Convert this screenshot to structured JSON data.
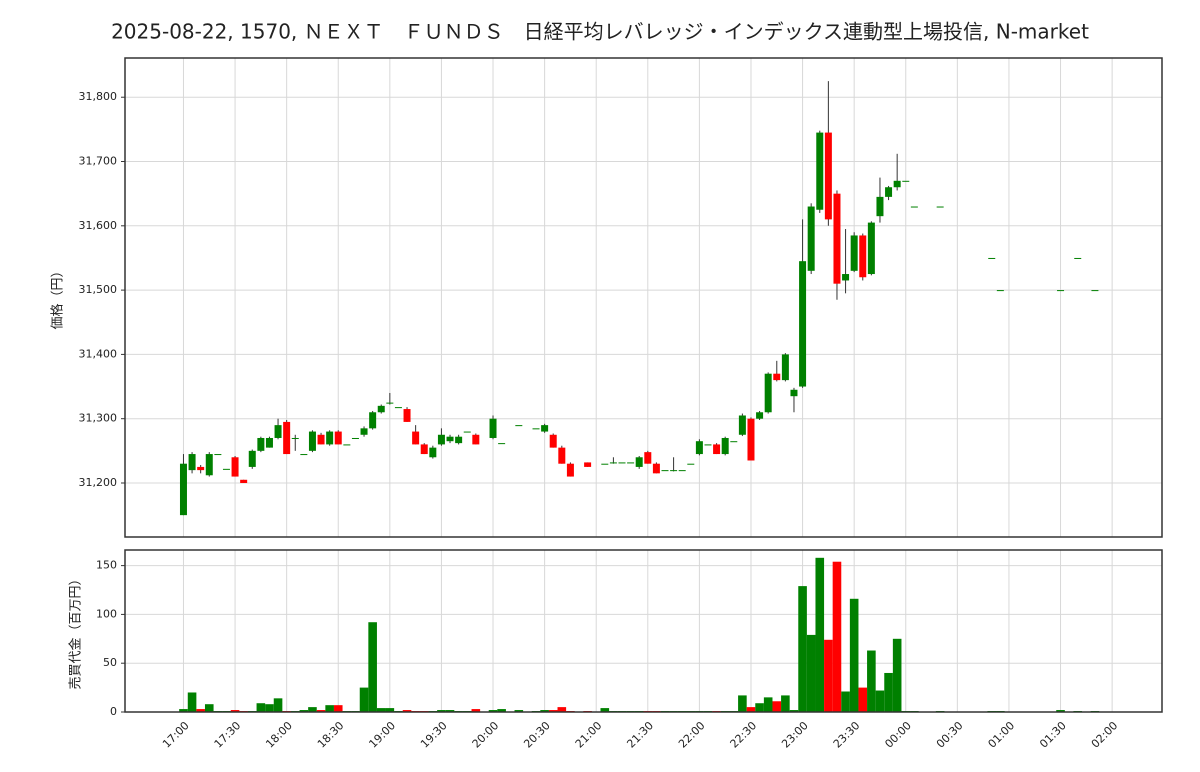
{
  "chart_data": {
    "type": "candlestick",
    "title": "2025-08-22, 1570, ＮＥＸＴ　ＦＵＮＤＳ　日経平均レバレッジ・インデックス連動型上場投信, N-market",
    "ylabel": "価格（円）",
    "y2label": "売買代金（百万円）",
    "up_color": "#008000",
    "down_color": "#ff0000",
    "grid": true,
    "x": [
      "17:00",
      "17:05",
      "17:10",
      "17:15",
      "17:20",
      "17:25",
      "17:30",
      "17:35",
      "17:40",
      "17:45",
      "17:50",
      "17:55",
      "18:00",
      "18:05",
      "18:10",
      "18:15",
      "18:20",
      "18:25",
      "18:30",
      "18:35",
      "18:40",
      "18:45",
      "18:50",
      "18:55",
      "19:00",
      "19:05",
      "19:10",
      "19:15",
      "19:20",
      "19:25",
      "19:30",
      "19:35",
      "19:40",
      "19:45",
      "19:50",
      "20:00",
      "20:05",
      "20:15",
      "20:25",
      "20:30",
      "20:35",
      "20:40",
      "20:45",
      "20:55",
      "21:05",
      "21:10",
      "21:15",
      "21:20",
      "21:25",
      "21:30",
      "21:35",
      "21:40",
      "21:45",
      "21:50",
      "21:55",
      "22:00",
      "22:05",
      "22:10",
      "22:15",
      "22:20",
      "22:25",
      "22:30",
      "22:35",
      "22:40",
      "22:45",
      "22:50",
      "22:55",
      "23:00",
      "23:05",
      "23:10",
      "23:15",
      "23:20",
      "23:25",
      "23:30",
      "23:35",
      "23:40",
      "23:45",
      "23:50",
      "23:55",
      "00:00",
      "00:05",
      "00:20",
      "00:50",
      "00:55",
      "01:30",
      "01:40",
      "01:50"
    ],
    "open": [
      31150,
      31220,
      31225,
      31212,
      31245,
      31222,
      31240,
      31205,
      31225,
      31250,
      31255,
      31270,
      31295,
      31270,
      31245,
      31250,
      31275,
      31260,
      31280,
      31260,
      31270,
      31275,
      31285,
      31310,
      31325,
      31318,
      31315,
      31280,
      31260,
      31240,
      31260,
      31265,
      31262,
      31280,
      31275,
      31270,
      31262,
      31290,
      31285,
      31280,
      31275,
      31255,
      31230,
      31232,
      31230,
      31232,
      31232,
      31232,
      31225,
      31248,
      31230,
      31220,
      31220,
      31220,
      31230,
      31245,
      31260,
      31260,
      31245,
      31265,
      31275,
      31300,
      31300,
      31310,
      31370,
      31360,
      31335,
      31350,
      31530,
      31625,
      31745,
      31650,
      31515,
      31530,
      31585,
      31525,
      31615,
      31645,
      31660,
      31670,
      31630,
      31630,
      31550,
      31500,
      31500,
      31550,
      31500
    ],
    "high": [
      31245,
      31248,
      31228,
      31248,
      31245,
      31222,
      31242,
      31205,
      31252,
      31272,
      31272,
      31300,
      31298,
      31275,
      31245,
      31282,
      31278,
      31282,
      31282,
      31260,
      31270,
      31288,
      31312,
      31322,
      31340,
      31318,
      31318,
      31290,
      31262,
      31258,
      31285,
      31275,
      31275,
      31280,
      31277,
      31305,
      31262,
      31290,
      31285,
      31292,
      31277,
      31258,
      31232,
      31232,
      31230,
      31240,
      31232,
      31232,
      31242,
      31250,
      31232,
      31220,
      31240,
      31220,
      31230,
      31268,
      31260,
      31262,
      31272,
      31265,
      31308,
      31302,
      31312,
      31372,
      31390,
      31402,
      31348,
      31610,
      31635,
      31748,
      31825,
      31655,
      31595,
      31590,
      31588,
      31607,
      31675,
      31662,
      31712,
      31670,
      31630,
      31630,
      31550,
      31500,
      31500,
      31550,
      31500
    ],
    "low": [
      31150,
      31215,
      31215,
      31210,
      31245,
      31222,
      31210,
      31200,
      31222,
      31248,
      31255,
      31268,
      31245,
      31250,
      31245,
      31248,
      31260,
      31258,
      31260,
      31260,
      31270,
      31272,
      31283,
      31308,
      31322,
      31318,
      31295,
      31260,
      31245,
      31238,
      31258,
      31262,
      31260,
      31280,
      31260,
      31268,
      31262,
      31290,
      31285,
      31278,
      31255,
      31230,
      31210,
      31225,
      31230,
      31230,
      31232,
      31232,
      31222,
      31230,
      31215,
      31220,
      31218,
      31220,
      31230,
      31243,
      31260,
      31245,
      31243,
      31265,
      31273,
      31235,
      31298,
      31308,
      31358,
      31358,
      31310,
      31348,
      31525,
      31620,
      31600,
      31485,
      31495,
      31528,
      31515,
      31523,
      31605,
      31640,
      31655,
      31670,
      31630,
      31630,
      31550,
      31500,
      31500,
      31550,
      31500
    ],
    "close": [
      31230,
      31245,
      31220,
      31245,
      31245,
      31222,
      31210,
      31200,
      31250,
      31270,
      31270,
      31290,
      31245,
      31270,
      31245,
      31280,
      31260,
      31280,
      31260,
      31260,
      31270,
      31285,
      31310,
      31320,
      31325,
      31318,
      31295,
      31260,
      31245,
      31255,
      31275,
      31272,
      31272,
      31280,
      31260,
      31300,
      31262,
      31290,
      31285,
      31290,
      31255,
      31230,
      31210,
      31225,
      31230,
      31232,
      31232,
      31232,
      31240,
      31230,
      31215,
      31220,
      31220,
      31220,
      31230,
      31265,
      31260,
      31245,
      31270,
      31265,
      31305,
      31235,
      31310,
      31370,
      31360,
      31400,
      31345,
      31545,
      31630,
      31745,
      31610,
      31510,
      31525,
      31585,
      31520,
      31605,
      31645,
      31660,
      31670,
      31670,
      31630,
      31630,
      31550,
      31500,
      31500,
      31550,
      31500
    ],
    "volume": [
      3,
      20,
      3,
      8,
      1,
      1,
      2,
      1,
      1,
      9,
      8,
      14,
      1,
      1,
      2,
      5,
      2,
      7,
      7,
      1,
      1,
      25,
      92,
      4,
      4,
      1,
      2,
      1,
      1,
      1,
      2,
      2,
      1,
      1,
      3,
      2,
      3,
      2,
      1,
      2,
      2,
      5,
      1,
      1,
      4,
      1,
      1,
      1,
      1,
      1,
      1,
      1,
      1,
      1,
      1,
      1,
      1,
      1,
      1,
      1,
      17,
      5,
      9,
      15,
      11,
      17,
      2,
      129,
      79,
      158,
      74,
      154,
      21,
      116,
      25,
      63,
      22,
      40,
      75,
      1,
      1,
      1,
      1,
      1,
      2,
      1,
      1
    ],
    "xlim": [
      "16:26",
      "02:29"
    ],
    "xticks": [
      "17:00",
      "17:30",
      "18:00",
      "18:30",
      "19:00",
      "19:30",
      "20:00",
      "20:30",
      "21:00",
      "21:30",
      "22:00",
      "22:30",
      "23:00",
      "23:30",
      "00:00",
      "00:30",
      "01:00",
      "01:30",
      "02:00"
    ],
    "ylim": [
      31116,
      31861
    ],
    "yticks": [
      {
        "value": 31200,
        "label": "31,200"
      },
      {
        "value": 31300,
        "label": "31,300"
      },
      {
        "value": 31400,
        "label": "31,400"
      },
      {
        "value": 31500,
        "label": "31,500"
      },
      {
        "value": 31600,
        "label": "31,600"
      },
      {
        "value": 31700,
        "label": "31,700"
      },
      {
        "value": 31800,
        "label": "31,800"
      }
    ],
    "y2lim": [
      0,
      166
    ],
    "y2ticks": [
      0,
      50,
      100,
      150
    ]
  }
}
